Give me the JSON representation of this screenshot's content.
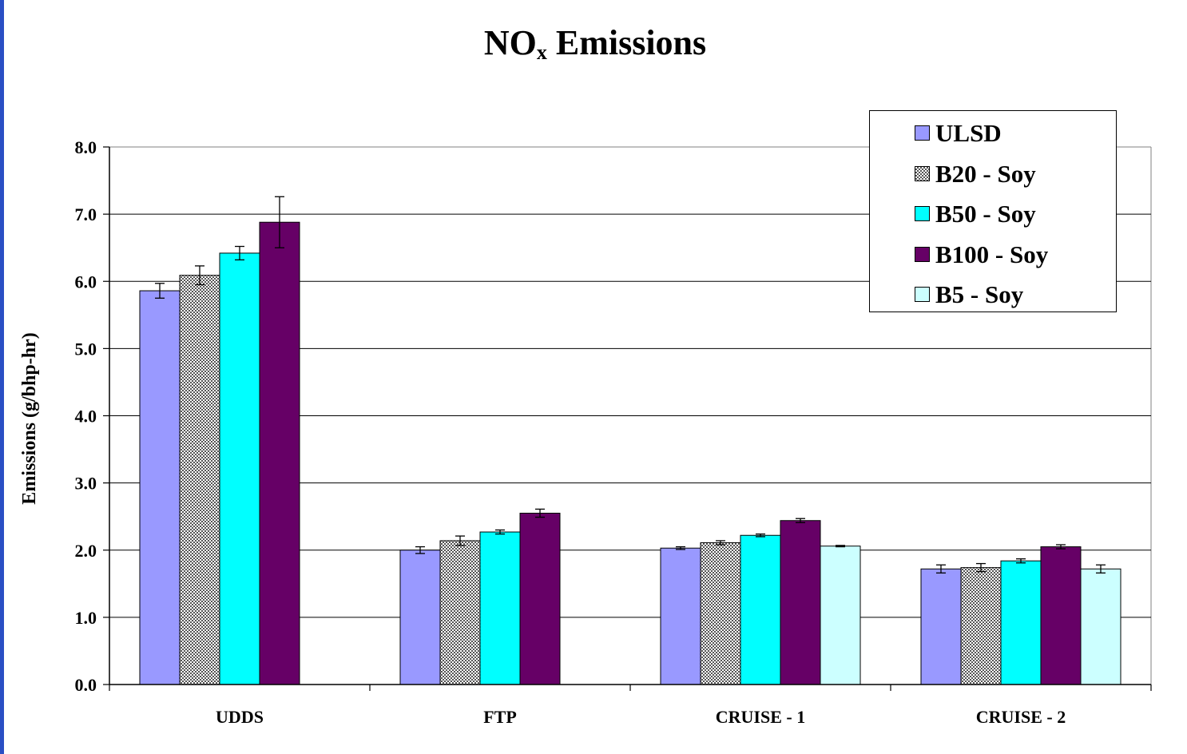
{
  "chart_data": {
    "type": "bar",
    "title": "NO",
    "title_subscript": "x",
    "title_suffix": " Emissions",
    "ylabel": "Emissions (g/bhp-hr)",
    "xlabel": "",
    "ylim": [
      0,
      8
    ],
    "y_ticks": [
      "0.0",
      "1.0",
      "2.0",
      "3.0",
      "4.0",
      "5.0",
      "6.0",
      "7.0",
      "8.0"
    ],
    "grid": true,
    "legend_position": "top-right",
    "categories": [
      "UDDS",
      "FTP",
      "CRUISE - 1",
      "CRUISE - 2"
    ],
    "series": [
      {
        "name": "ULSD",
        "color": "#9999ff",
        "pattern": "solid",
        "values": [
          5.86,
          2.0,
          2.03,
          1.72
        ],
        "errors": [
          0.11,
          0.05,
          0.02,
          0.06
        ]
      },
      {
        "name": "B20 - Soy",
        "color": "#8c8c8c",
        "pattern": "checker",
        "values": [
          6.09,
          2.14,
          2.11,
          1.74
        ],
        "errors": [
          0.14,
          0.07,
          0.03,
          0.06
        ]
      },
      {
        "name": "B50 - Soy",
        "color": "#00ffff",
        "pattern": "solid",
        "values": [
          6.42,
          2.27,
          2.22,
          1.84
        ],
        "errors": [
          0.1,
          0.03,
          0.02,
          0.03
        ]
      },
      {
        "name": "B100 - Soy",
        "color": "#660066",
        "pattern": "solid",
        "values": [
          6.88,
          2.55,
          2.44,
          2.05
        ],
        "errors": [
          0.38,
          0.06,
          0.03,
          0.03
        ]
      },
      {
        "name": "B5 - Soy",
        "color": "#ccffff",
        "pattern": "solid",
        "values": [
          null,
          null,
          2.06,
          1.72
        ],
        "errors": [
          null,
          null,
          0.01,
          0.06
        ]
      }
    ]
  }
}
